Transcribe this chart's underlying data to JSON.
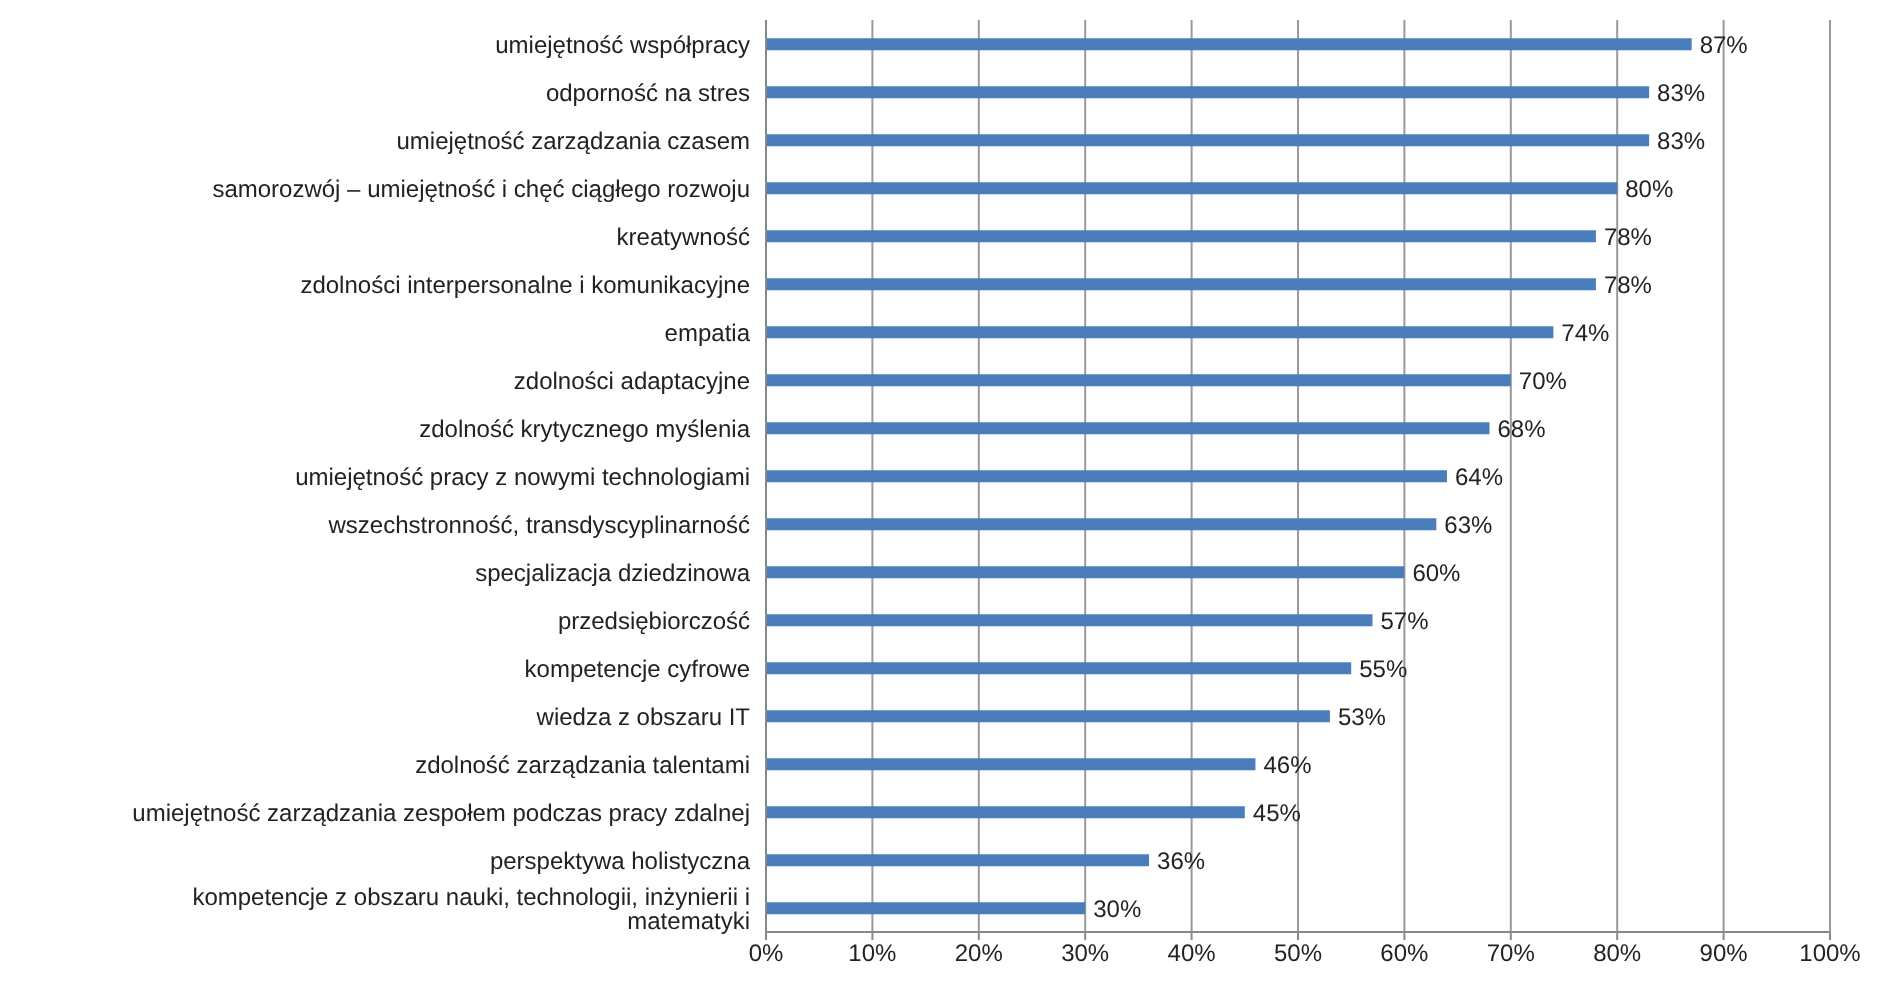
{
  "chart_data": {
    "type": "bar",
    "orientation": "horizontal",
    "categories": [
      "umiejętność współpracy",
      "odporność na stres",
      "umiejętność zarządzania czasem",
      "samorozwój – umiejętność i chęć ciągłego rozwoju",
      "kreatywność",
      "zdolności interpersonalne i komunikacyjne",
      "empatia",
      "zdolności adaptacyjne",
      "zdolność krytycznego myślenia",
      "umiejętność pracy z nowymi technologiami",
      "wszechstronność, transdyscyplinarność",
      "specjalizacja dziedzinowa",
      "przedsiębiorczość",
      "kompetencje cyfrowe",
      "wiedza z obszaru IT",
      "zdolność zarządzania talentami",
      "umiejętność zarządzania zespołem podczas pracy zdalnej",
      "perspektywa holistyczna",
      "kompetencje z obszaru nauki, technologii, inżynierii i matematyki"
    ],
    "values": [
      87,
      83,
      83,
      80,
      78,
      78,
      74,
      70,
      68,
      64,
      63,
      60,
      57,
      55,
      53,
      46,
      45,
      36,
      30
    ],
    "value_labels": [
      "87%",
      "83%",
      "83%",
      "80%",
      "78%",
      "78%",
      "74%",
      "70%",
      "68%",
      "64%",
      "63%",
      "60%",
      "57%",
      "55%",
      "53%",
      "46%",
      "45%",
      "36%",
      "30%"
    ],
    "color": "#4a7ebb",
    "xlim": [
      0,
      100
    ],
    "xticks": [
      {
        "value": 0,
        "label": "0%"
      },
      {
        "value": 10,
        "label": "10%"
      },
      {
        "value": 20,
        "label": "20%"
      },
      {
        "value": 30,
        "label": "30%"
      },
      {
        "value": 40,
        "label": "40%"
      },
      {
        "value": 50,
        "label": "50%"
      },
      {
        "value": 60,
        "label": "60%"
      },
      {
        "value": 70,
        "label": "70%"
      },
      {
        "value": 80,
        "label": "80%"
      },
      {
        "value": 90,
        "label": "90%"
      },
      {
        "value": 100,
        "label": "100%"
      }
    ],
    "grid": "x"
  }
}
